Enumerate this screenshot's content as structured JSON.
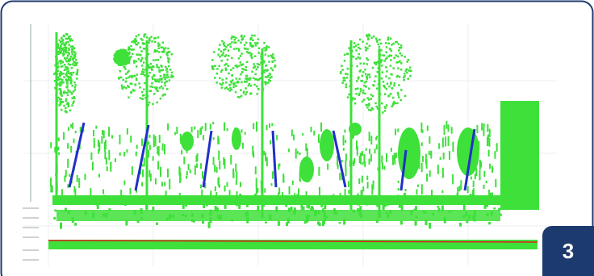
{
  "badge": {
    "label": "3"
  }
}
